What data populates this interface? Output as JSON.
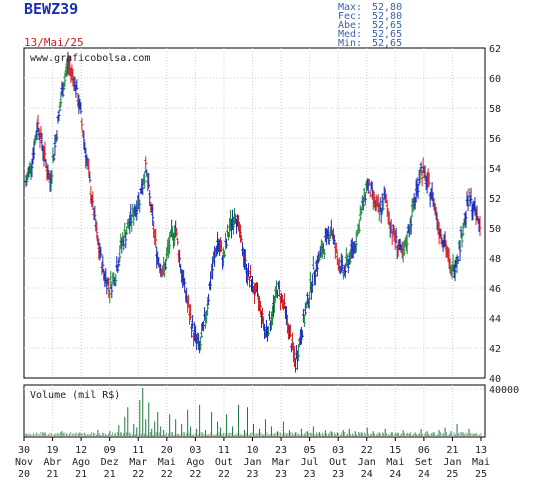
{
  "ticker": "BEWZ39",
  "date_label": "13/Mai/25",
  "stats": [
    {
      "label": "Max:",
      "value": "52,80"
    },
    {
      "label": "Fec:",
      "value": "52,80"
    },
    {
      "label": "Abe:",
      "value": "52,65"
    },
    {
      "label": "Med:",
      "value": "52,65"
    },
    {
      "label": "Min:",
      "value": "52,65"
    }
  ],
  "watermark": "www.graficobolsa.com",
  "volume_label": "Volume (mil R$)",
  "colors": {
    "up": "#1a8a3a",
    "down": "#d42020",
    "blue": "#1428b8",
    "volume": "#1a7a3a",
    "grid": "#cccccc"
  },
  "chart_data": [
    {
      "type": "candlestick",
      "title": "BEWZ39",
      "ylim": [
        40,
        62
      ],
      "y_ticks": [
        40,
        42,
        44,
        46,
        48,
        50,
        52,
        54,
        56,
        58,
        60,
        62
      ],
      "x_ticks": [
        {
          "day": "30",
          "month": "Nov",
          "year": "20"
        },
        {
          "day": "19",
          "month": "Abr",
          "year": "21"
        },
        {
          "day": "12",
          "month": "Ago",
          "year": "21"
        },
        {
          "day": "09",
          "month": "Dez",
          "year": "21"
        },
        {
          "day": "11",
          "month": "Mar",
          "year": "22"
        },
        {
          "day": "20",
          "month": "Mai",
          "year": "22"
        },
        {
          "day": "03",
          "month": "Ago",
          "year": "22"
        },
        {
          "day": "11",
          "month": "Out",
          "year": "22"
        },
        {
          "day": "10",
          "month": "Jan",
          "year": "23"
        },
        {
          "day": "23",
          "month": "Mar",
          "year": "23"
        },
        {
          "day": "05",
          "month": "Jul",
          "year": "23"
        },
        {
          "day": "03",
          "month": "Out",
          "year": "23"
        },
        {
          "day": "22",
          "month": "Jan",
          "year": "24"
        },
        {
          "day": "15",
          "month": "Mai",
          "year": "24"
        },
        {
          "day": "06",
          "month": "Set",
          "year": "24"
        },
        {
          "day": "21",
          "month": "Jan",
          "year": "25"
        },
        {
          "day": "13",
          "month": "Mai",
          "year": "25"
        }
      ],
      "path": [
        [
          0,
          53
        ],
        [
          2,
          54.5
        ],
        [
          4,
          57
        ],
        [
          6,
          55
        ],
        [
          8,
          53
        ],
        [
          10,
          56
        ],
        [
          12,
          59
        ],
        [
          14,
          61
        ],
        [
          16,
          60
        ],
        [
          18,
          58
        ],
        [
          20,
          55
        ],
        [
          22,
          52
        ],
        [
          24,
          49
        ],
        [
          26,
          47
        ],
        [
          28,
          46
        ],
        [
          30,
          47
        ],
        [
          32,
          49
        ],
        [
          34,
          50
        ],
        [
          36,
          51
        ],
        [
          38,
          52
        ],
        [
          40,
          54
        ],
        [
          42,
          51
        ],
        [
          44,
          48
        ],
        [
          46,
          47
        ],
        [
          48,
          49
        ],
        [
          50,
          50
        ],
        [
          52,
          47
        ],
        [
          54,
          45
        ],
        [
          56,
          43
        ],
        [
          58,
          42
        ],
        [
          60,
          44
        ],
        [
          62,
          47
        ],
        [
          64,
          49
        ],
        [
          66,
          48
        ],
        [
          68,
          50
        ],
        [
          70,
          51
        ],
        [
          72,
          49
        ],
        [
          74,
          47
        ],
        [
          76,
          46
        ],
        [
          78,
          45
        ],
        [
          80,
          43
        ],
        [
          82,
          44
        ],
        [
          84,
          46
        ],
        [
          86,
          45
        ],
        [
          88,
          43
        ],
        [
          90,
          41
        ],
        [
          92,
          43
        ],
        [
          94,
          45
        ],
        [
          96,
          47
        ],
        [
          98,
          48
        ],
        [
          100,
          49
        ],
        [
          102,
          50
        ],
        [
          104,
          48
        ],
        [
          106,
          47
        ],
        [
          108,
          48
        ],
        [
          110,
          49
        ],
        [
          112,
          51
        ],
        [
          114,
          53
        ],
        [
          116,
          52
        ],
        [
          118,
          51
        ],
        [
          120,
          52
        ],
        [
          122,
          50
        ],
        [
          124,
          49
        ],
        [
          126,
          48
        ],
        [
          128,
          50
        ],
        [
          130,
          52
        ],
        [
          132,
          54
        ],
        [
          134,
          53
        ],
        [
          136,
          52
        ],
        [
          138,
          50
        ],
        [
          140,
          49
        ],
        [
          142,
          47
        ],
        [
          144,
          48
        ],
        [
          146,
          50
        ],
        [
          148,
          52
        ],
        [
          150,
          51
        ],
        [
          152,
          50
        ]
      ],
      "volume": {
        "ylim": [
          0,
          40000
        ],
        "y_ticks": [
          40000
        ],
        "bars": [
          [
            0,
            2
          ],
          [
            6,
            3
          ],
          [
            12,
            4
          ],
          [
            18,
            3
          ],
          [
            24,
            5
          ],
          [
            28,
            4
          ],
          [
            31,
            9
          ],
          [
            33,
            16
          ],
          [
            34,
            24
          ],
          [
            36,
            10
          ],
          [
            37,
            7
          ],
          [
            38,
            30
          ],
          [
            39,
            40
          ],
          [
            40,
            14
          ],
          [
            41,
            28
          ],
          [
            42,
            6
          ],
          [
            43,
            12
          ],
          [
            44,
            20
          ],
          [
            45,
            8
          ],
          [
            46,
            5
          ],
          [
            48,
            18
          ],
          [
            50,
            14
          ],
          [
            52,
            10
          ],
          [
            54,
            22
          ],
          [
            55,
            8
          ],
          [
            57,
            6
          ],
          [
            58,
            26
          ],
          [
            60,
            5
          ],
          [
            62,
            20
          ],
          [
            64,
            12
          ],
          [
            65,
            7
          ],
          [
            67,
            18
          ],
          [
            69,
            8
          ],
          [
            71,
            26
          ],
          [
            73,
            5
          ],
          [
            74,
            24
          ],
          [
            76,
            10
          ],
          [
            78,
            6
          ],
          [
            80,
            14
          ],
          [
            82,
            8
          ],
          [
            84,
            4
          ],
          [
            86,
            12
          ],
          [
            88,
            5
          ],
          [
            90,
            3
          ],
          [
            92,
            6
          ],
          [
            94,
            4
          ],
          [
            96,
            8
          ],
          [
            98,
            3
          ],
          [
            100,
            5
          ],
          [
            102,
            4
          ],
          [
            104,
            3
          ],
          [
            106,
            5
          ],
          [
            108,
            6
          ],
          [
            110,
            4
          ],
          [
            112,
            3
          ],
          [
            114,
            7
          ],
          [
            116,
            4
          ],
          [
            118,
            3
          ],
          [
            120,
            6
          ],
          [
            122,
            3
          ],
          [
            124,
            2
          ],
          [
            126,
            5
          ],
          [
            128,
            2
          ],
          [
            130,
            3
          ],
          [
            132,
            6
          ],
          [
            134,
            4
          ],
          [
            136,
            3
          ],
          [
            138,
            5
          ],
          [
            140,
            7
          ],
          [
            142,
            4
          ],
          [
            144,
            10
          ],
          [
            146,
            3
          ],
          [
            148,
            6
          ],
          [
            150,
            2
          ]
        ]
      }
    }
  ]
}
